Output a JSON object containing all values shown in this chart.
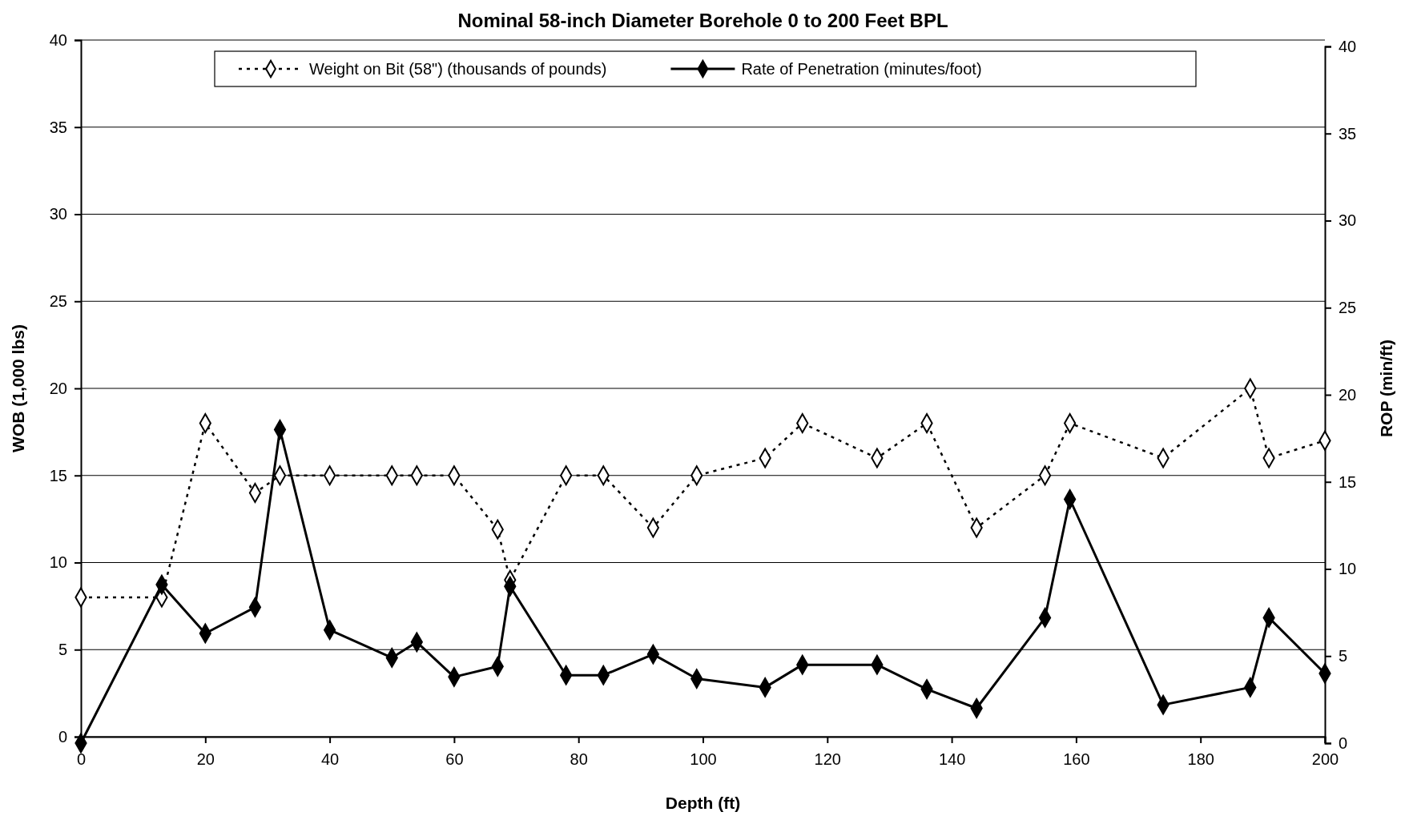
{
  "chart_data": {
    "type": "line",
    "title": "Nominal 58-inch Diameter Borehole 0 to 200 Feet BPL",
    "xlabel": "Depth (ft)",
    "ylabel": "WOB (1,000 lbs)",
    "y2label": "ROP (min/ft)",
    "x": [
      0,
      13,
      20,
      28,
      32,
      40,
      50,
      54,
      60,
      67,
      69,
      78,
      84,
      92,
      99,
      110,
      116,
      128,
      136,
      144,
      155,
      159,
      174,
      188,
      191,
      200
    ],
    "series": [
      {
        "name": "Weight on Bit (58\") (thousands of pounds)",
        "color": "#000000",
        "line_style": "dotted",
        "marker": "diamond",
        "values": [
          8,
          8,
          18,
          14,
          15,
          15,
          15,
          15,
          15,
          11.9,
          9,
          15,
          15,
          12,
          15,
          16,
          18,
          16,
          18,
          12,
          15,
          18,
          16,
          20,
          16,
          17
        ]
      },
      {
        "name": "Rate of Penetration (minutes/foot)",
        "color": "#000000",
        "line_style": "solid",
        "marker": "diamond",
        "axis": "y2",
        "values": [
          0,
          9.1,
          6.3,
          7.8,
          18,
          6.5,
          4.9,
          5.8,
          3.8,
          4.4,
          9,
          3.9,
          3.9,
          5.1,
          3.7,
          3.2,
          4.5,
          4.5,
          3.1,
          2,
          7.2,
          14,
          2.2,
          3.2,
          7.2,
          4
        ]
      }
    ],
    "xlim": [
      0,
      200
    ],
    "xticks": [
      0,
      20,
      40,
      60,
      80,
      100,
      120,
      140,
      160,
      180,
      200
    ],
    "ylim": [
      0,
      40
    ],
    "yticks": [
      0,
      5,
      10,
      15,
      20,
      25,
      30,
      35,
      40
    ],
    "y2lim": [
      0,
      40
    ],
    "y2ticks": [
      0,
      5,
      10,
      15,
      20,
      25,
      30,
      35,
      40
    ],
    "grid": "y",
    "legend": "top"
  }
}
